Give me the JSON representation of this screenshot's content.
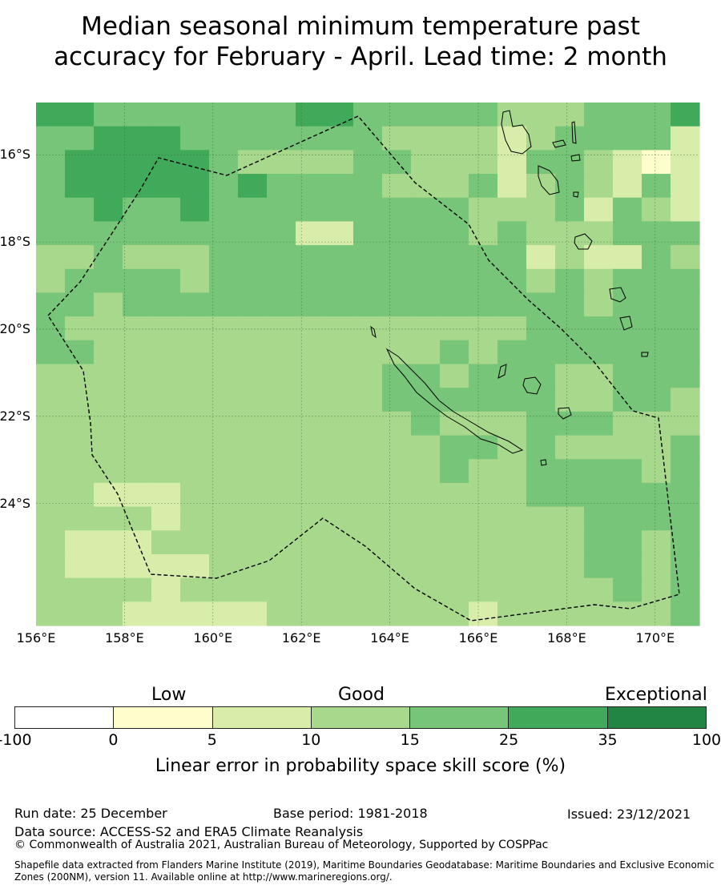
{
  "title_line1": "Median seasonal minimum temperature past",
  "title_line2": "accuracy for February - April. Lead time: 2 month",
  "map": {
    "lon_range": [
      156,
      171
    ],
    "lat_range": [
      -26.8,
      -14.8
    ],
    "lat_ticks": [
      {
        "label": "16°S",
        "value": -16
      },
      {
        "label": "18°S",
        "value": -18
      },
      {
        "label": "20°S",
        "value": -20
      },
      {
        "label": "22°S",
        "value": -22
      },
      {
        "label": "24°S",
        "value": -24
      }
    ],
    "lon_ticks": [
      {
        "label": "156°E",
        "value": 156
      },
      {
        "label": "158°E",
        "value": 158
      },
      {
        "label": "160°E",
        "value": 160
      },
      {
        "label": "162°E",
        "value": 162
      },
      {
        "label": "164°E",
        "value": 164
      },
      {
        "label": "166°E",
        "value": 166
      },
      {
        "label": "168°E",
        "value": 168
      },
      {
        "label": "170°E",
        "value": 170
      }
    ],
    "grid_rows": [
      "55444444455444443334445",
      "44555444444433332344442",
      "45555543333443332443212",
      "45555545444433342343242",
      "44544544444444433342432",
      "44444444422444434333444",
      "33433344444444444232243",
      "34444344444444444343444",
      "44344444444444444443444",
      "43333333333333333444444",
      "44333333333333434444444",
      "33333333333344344433444",
      "33333333333344444433443",
      "33333333333334333444333",
      "33333333333333443433334",
      "33333333333333433444434",
      "33222333333333333444444",
      "33332333333333333334444",
      "32223333333333333334434",
      "32222233333333333334434",
      "33332333333333333333434",
      "33322222333333323333334"
    ]
  },
  "legend": {
    "categories": [
      "Low",
      "Good",
      "Exceptional"
    ],
    "ticks": [
      "-100",
      "0",
      "5",
      "10",
      "15",
      "25",
      "35",
      "100"
    ],
    "colors": [
      "#ffffff",
      "#fefecc",
      "#d8edaa",
      "#a8d88c",
      "#77c579",
      "#41a95a",
      "#228543"
    ],
    "label": "Linear error in probability space skill score (%)"
  },
  "footer": {
    "run_date": "Run date: 25 December",
    "base_period": "Base period: 1981-2018",
    "issued": "Issued: 23/12/2021",
    "data_source": "Data source: ACCESS-S2 and ERA5 Climate Reanalysis",
    "copyright": "© Commonwealth of Australia 2021, Australian Bureau of Meteorology, Supported by COSPPac",
    "shapefile_note": "Shapefile data extracted from Flanders Marine Institute (2019), Maritime Boundaries Geodatabase: Maritime Boundaries and Exclusive Economic Zones (200NM), version 11. Available online at http://www.marineregions.org/."
  }
}
